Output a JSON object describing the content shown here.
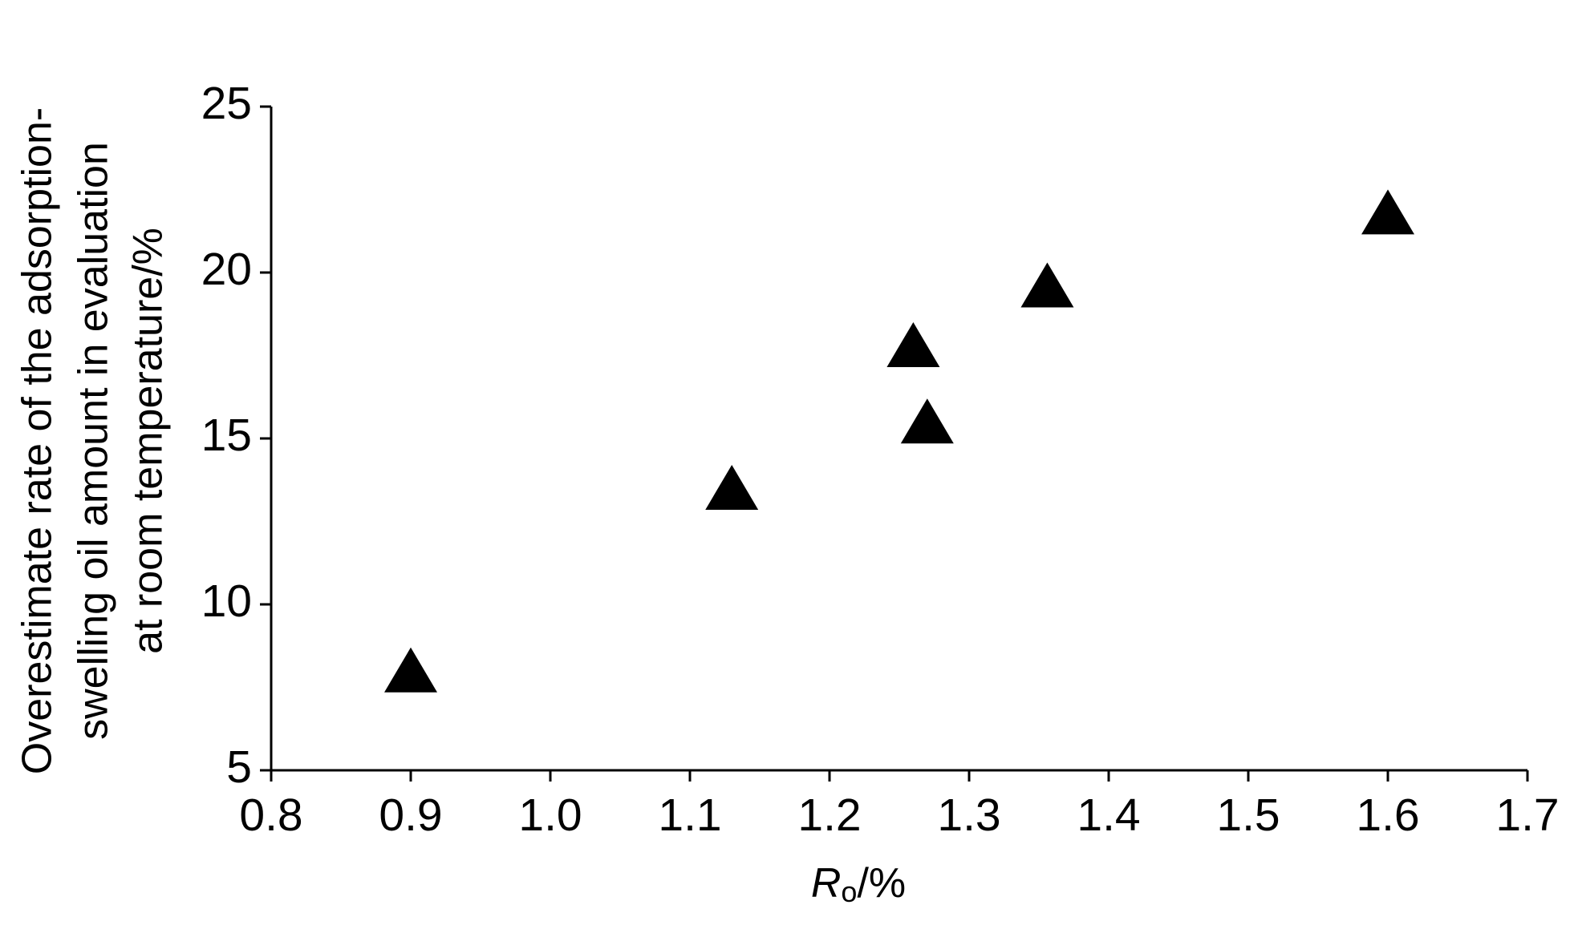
{
  "chart_data": {
    "type": "scatter",
    "x_label": {
      "symbol": "R",
      "subscript": "o",
      "unit": "/%"
    },
    "y_label": [
      "Overestimate rate of the adsorption-",
      "swelling oil amount in evaluation",
      "at room temperature/%"
    ],
    "x": [
      0.9,
      1.13,
      1.26,
      1.27,
      1.356,
      1.6
    ],
    "values": [
      7.8,
      13.3,
      17.6,
      15.3,
      19.4,
      21.6
    ],
    "color": "#000000",
    "marker": "triangle",
    "xlim": [
      0.8,
      1.7
    ],
    "xticks": [
      0.8,
      0.9,
      {
        "value": 1,
        "label": "1.0"
      },
      1.1,
      1.2,
      1.3,
      1.4,
      1.5,
      1.6,
      1.7
    ],
    "ylim": [
      5,
      25
    ],
    "yticks": [
      5,
      10,
      15,
      20,
      25
    ],
    "grid": false
  }
}
